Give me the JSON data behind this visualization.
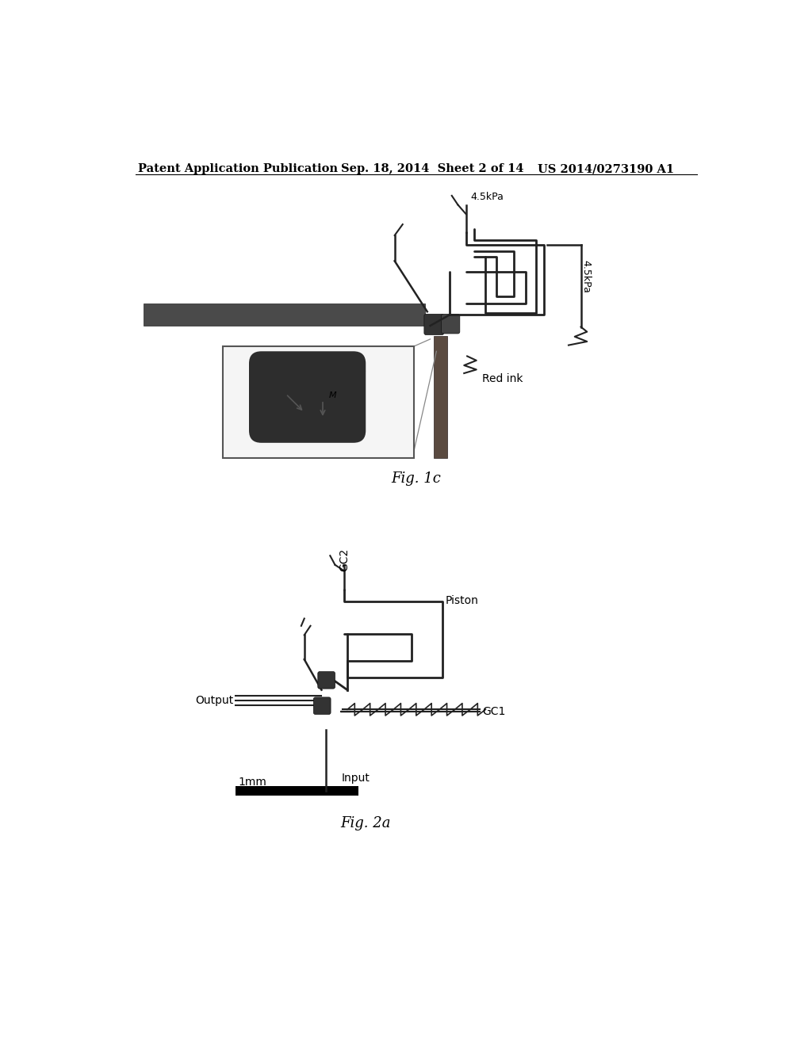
{
  "page_title_left": "Patent Application Publication",
  "page_title_center": "Sep. 18, 2014  Sheet 2 of 14",
  "page_title_right": "US 2014/0273190 A1",
  "fig1c_label": "Fig. 1c",
  "fig2a_label": "Fig. 2a",
  "background_color": "#ffffff",
  "text_color": "#000000",
  "header_fontsize": 10.5,
  "fig_label_fontsize": 13,
  "lw_channel": 2.0,
  "lw_thin": 1.2,
  "channel_color": "#222222",
  "bar_color": "#555555"
}
